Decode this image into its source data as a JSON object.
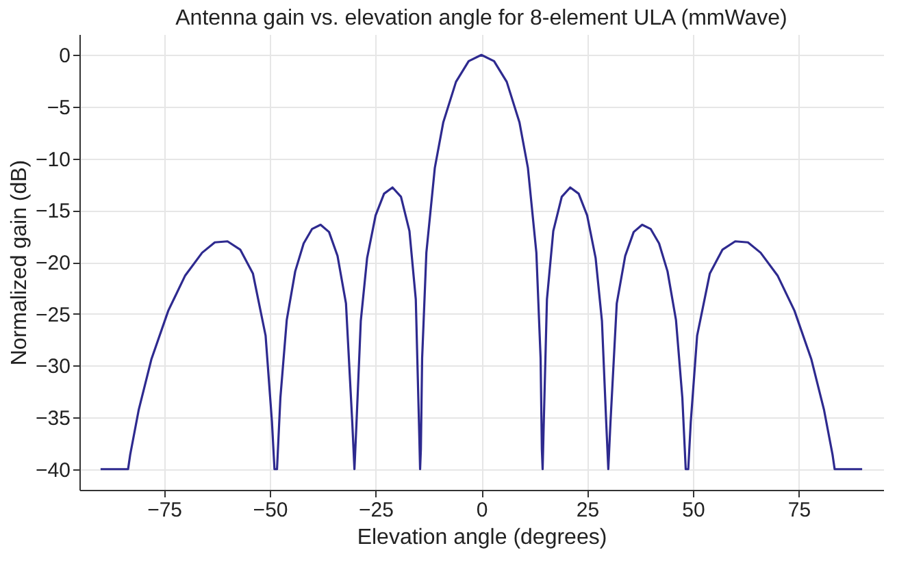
{
  "chart_data": {
    "type": "line",
    "title": "Antenna gain vs. elevation angle for 8-element ULA (mmWave)",
    "xlabel": "Elevation angle (degrees)",
    "ylabel": "Normalized gain (dB)",
    "x": [
      -90,
      -83.5,
      -83,
      -81,
      -78,
      -74,
      -70,
      -66,
      -63,
      -60,
      -57,
      -54,
      -51,
      -49.5,
      -48.9,
      -48.3,
      -47.5,
      -46,
      -44,
      -42,
      -40,
      -38,
      -36,
      -34,
      -32,
      -30.5,
      -30,
      -29.5,
      -28.5,
      -27,
      -25,
      -23,
      -21,
      -19,
      -17,
      -15.5,
      -14.7,
      -14.48,
      -14.3,
      -14,
      -13,
      -11,
      -9,
      -6,
      -3,
      0,
      3,
      6,
      9,
      11,
      13,
      14,
      14.3,
      14.48,
      14.7,
      15.5,
      17,
      19,
      21,
      23,
      25,
      27,
      28.5,
      29.5,
      30,
      30.5,
      32,
      34,
      36,
      38,
      40,
      42,
      44,
      46,
      47.5,
      48.3,
      48.9,
      49.5,
      51,
      54,
      57,
      60,
      63,
      66,
      70,
      74,
      78,
      81,
      83,
      83.5,
      90
    ],
    "series": [
      {
        "color": "#2e2a8f",
        "values": [
          -40,
          -40,
          -38.6,
          -34.3,
          -29.4,
          -24.7,
          -21.3,
          -19.1,
          -18.1,
          -18.0,
          -18.8,
          -21.1,
          -27.1,
          -35.4,
          -40,
          -40,
          -33.1,
          -25.6,
          -20.9,
          -18.2,
          -16.8,
          -16.4,
          -17.1,
          -19.4,
          -24.0,
          -35.6,
          -40,
          -35.4,
          -25.7,
          -19.6,
          -15.5,
          -13.4,
          -12.8,
          -13.7,
          -17.0,
          -23.6,
          -36.3,
          -40,
          -38.1,
          -29.3,
          -19.1,
          -10.9,
          -6.5,
          -2.6,
          -0.6,
          0,
          -0.6,
          -2.6,
          -6.5,
          -10.9,
          -19.1,
          -29.3,
          -38.1,
          -40,
          -36.3,
          -23.6,
          -17.0,
          -13.7,
          -12.8,
          -13.4,
          -15.5,
          -19.6,
          -25.7,
          -35.4,
          -40,
          -35.6,
          -24.0,
          -19.4,
          -17.1,
          -16.4,
          -16.8,
          -18.2,
          -20.9,
          -25.6,
          -33.1,
          -40,
          -40,
          -35.4,
          -27.1,
          -21.1,
          -18.8,
          -18.0,
          -18.1,
          -19.1,
          -21.3,
          -24.7,
          -29.4,
          -34.3,
          -38.6,
          -40,
          -40
        ]
      }
    ],
    "xlim": [
      -95,
      95
    ],
    "xticks": [
      -75,
      -50,
      -25,
      0,
      25,
      50,
      75
    ],
    "ylim": [
      -42,
      2
    ],
    "yticks": [
      0,
      -5,
      -10,
      -15,
      -20,
      -25,
      -30,
      -35,
      -40
    ],
    "grid": true,
    "marker": "none",
    "line_style": "solid"
  }
}
